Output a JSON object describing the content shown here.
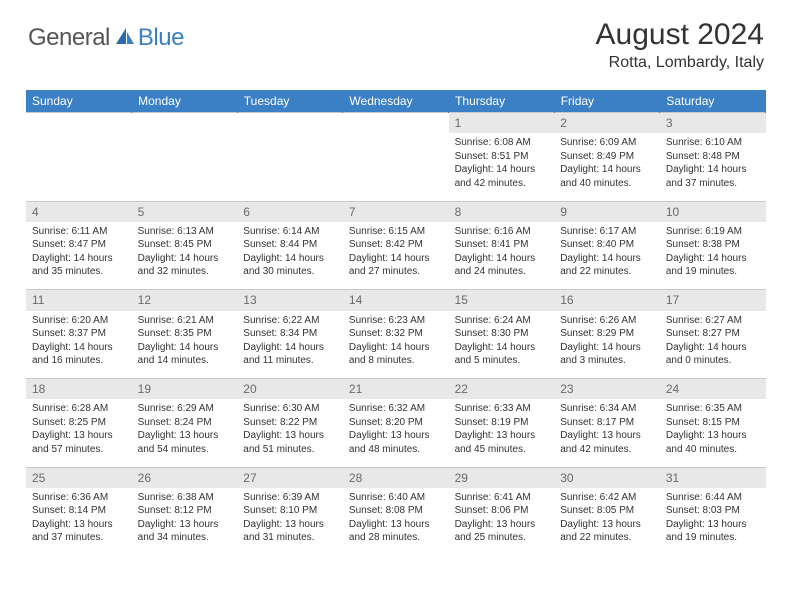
{
  "logo": {
    "general": "General",
    "blue": "Blue"
  },
  "title": "August 2024",
  "location": "Rotta, Lombardy, Italy",
  "colors": {
    "header_bg": "#3b7fc4",
    "header_text": "#ffffff",
    "daynum_bg": "#e8e8e8",
    "daynum_text": "#6a6a6a",
    "body_text": "#333333",
    "logo_gray": "#555555",
    "logo_blue": "#3b7fc4"
  },
  "weekdays": [
    "Sunday",
    "Monday",
    "Tuesday",
    "Wednesday",
    "Thursday",
    "Friday",
    "Saturday"
  ],
  "weeks": [
    [
      {
        "n": "",
        "sr": "",
        "ss": "",
        "dl": ""
      },
      {
        "n": "",
        "sr": "",
        "ss": "",
        "dl": ""
      },
      {
        "n": "",
        "sr": "",
        "ss": "",
        "dl": ""
      },
      {
        "n": "",
        "sr": "",
        "ss": "",
        "dl": ""
      },
      {
        "n": "1",
        "sr": "Sunrise: 6:08 AM",
        "ss": "Sunset: 8:51 PM",
        "dl": "Daylight: 14 hours and 42 minutes."
      },
      {
        "n": "2",
        "sr": "Sunrise: 6:09 AM",
        "ss": "Sunset: 8:49 PM",
        "dl": "Daylight: 14 hours and 40 minutes."
      },
      {
        "n": "3",
        "sr": "Sunrise: 6:10 AM",
        "ss": "Sunset: 8:48 PM",
        "dl": "Daylight: 14 hours and 37 minutes."
      }
    ],
    [
      {
        "n": "4",
        "sr": "Sunrise: 6:11 AM",
        "ss": "Sunset: 8:47 PM",
        "dl": "Daylight: 14 hours and 35 minutes."
      },
      {
        "n": "5",
        "sr": "Sunrise: 6:13 AM",
        "ss": "Sunset: 8:45 PM",
        "dl": "Daylight: 14 hours and 32 minutes."
      },
      {
        "n": "6",
        "sr": "Sunrise: 6:14 AM",
        "ss": "Sunset: 8:44 PM",
        "dl": "Daylight: 14 hours and 30 minutes."
      },
      {
        "n": "7",
        "sr": "Sunrise: 6:15 AM",
        "ss": "Sunset: 8:42 PM",
        "dl": "Daylight: 14 hours and 27 minutes."
      },
      {
        "n": "8",
        "sr": "Sunrise: 6:16 AM",
        "ss": "Sunset: 8:41 PM",
        "dl": "Daylight: 14 hours and 24 minutes."
      },
      {
        "n": "9",
        "sr": "Sunrise: 6:17 AM",
        "ss": "Sunset: 8:40 PM",
        "dl": "Daylight: 14 hours and 22 minutes."
      },
      {
        "n": "10",
        "sr": "Sunrise: 6:19 AM",
        "ss": "Sunset: 8:38 PM",
        "dl": "Daylight: 14 hours and 19 minutes."
      }
    ],
    [
      {
        "n": "11",
        "sr": "Sunrise: 6:20 AM",
        "ss": "Sunset: 8:37 PM",
        "dl": "Daylight: 14 hours and 16 minutes."
      },
      {
        "n": "12",
        "sr": "Sunrise: 6:21 AM",
        "ss": "Sunset: 8:35 PM",
        "dl": "Daylight: 14 hours and 14 minutes."
      },
      {
        "n": "13",
        "sr": "Sunrise: 6:22 AM",
        "ss": "Sunset: 8:34 PM",
        "dl": "Daylight: 14 hours and 11 minutes."
      },
      {
        "n": "14",
        "sr": "Sunrise: 6:23 AM",
        "ss": "Sunset: 8:32 PM",
        "dl": "Daylight: 14 hours and 8 minutes."
      },
      {
        "n": "15",
        "sr": "Sunrise: 6:24 AM",
        "ss": "Sunset: 8:30 PM",
        "dl": "Daylight: 14 hours and 5 minutes."
      },
      {
        "n": "16",
        "sr": "Sunrise: 6:26 AM",
        "ss": "Sunset: 8:29 PM",
        "dl": "Daylight: 14 hours and 3 minutes."
      },
      {
        "n": "17",
        "sr": "Sunrise: 6:27 AM",
        "ss": "Sunset: 8:27 PM",
        "dl": "Daylight: 14 hours and 0 minutes."
      }
    ],
    [
      {
        "n": "18",
        "sr": "Sunrise: 6:28 AM",
        "ss": "Sunset: 8:25 PM",
        "dl": "Daylight: 13 hours and 57 minutes."
      },
      {
        "n": "19",
        "sr": "Sunrise: 6:29 AM",
        "ss": "Sunset: 8:24 PM",
        "dl": "Daylight: 13 hours and 54 minutes."
      },
      {
        "n": "20",
        "sr": "Sunrise: 6:30 AM",
        "ss": "Sunset: 8:22 PM",
        "dl": "Daylight: 13 hours and 51 minutes."
      },
      {
        "n": "21",
        "sr": "Sunrise: 6:32 AM",
        "ss": "Sunset: 8:20 PM",
        "dl": "Daylight: 13 hours and 48 minutes."
      },
      {
        "n": "22",
        "sr": "Sunrise: 6:33 AM",
        "ss": "Sunset: 8:19 PM",
        "dl": "Daylight: 13 hours and 45 minutes."
      },
      {
        "n": "23",
        "sr": "Sunrise: 6:34 AM",
        "ss": "Sunset: 8:17 PM",
        "dl": "Daylight: 13 hours and 42 minutes."
      },
      {
        "n": "24",
        "sr": "Sunrise: 6:35 AM",
        "ss": "Sunset: 8:15 PM",
        "dl": "Daylight: 13 hours and 40 minutes."
      }
    ],
    [
      {
        "n": "25",
        "sr": "Sunrise: 6:36 AM",
        "ss": "Sunset: 8:14 PM",
        "dl": "Daylight: 13 hours and 37 minutes."
      },
      {
        "n": "26",
        "sr": "Sunrise: 6:38 AM",
        "ss": "Sunset: 8:12 PM",
        "dl": "Daylight: 13 hours and 34 minutes."
      },
      {
        "n": "27",
        "sr": "Sunrise: 6:39 AM",
        "ss": "Sunset: 8:10 PM",
        "dl": "Daylight: 13 hours and 31 minutes."
      },
      {
        "n": "28",
        "sr": "Sunrise: 6:40 AM",
        "ss": "Sunset: 8:08 PM",
        "dl": "Daylight: 13 hours and 28 minutes."
      },
      {
        "n": "29",
        "sr": "Sunrise: 6:41 AM",
        "ss": "Sunset: 8:06 PM",
        "dl": "Daylight: 13 hours and 25 minutes."
      },
      {
        "n": "30",
        "sr": "Sunrise: 6:42 AM",
        "ss": "Sunset: 8:05 PM",
        "dl": "Daylight: 13 hours and 22 minutes."
      },
      {
        "n": "31",
        "sr": "Sunrise: 6:44 AM",
        "ss": "Sunset: 8:03 PM",
        "dl": "Daylight: 13 hours and 19 minutes."
      }
    ]
  ]
}
